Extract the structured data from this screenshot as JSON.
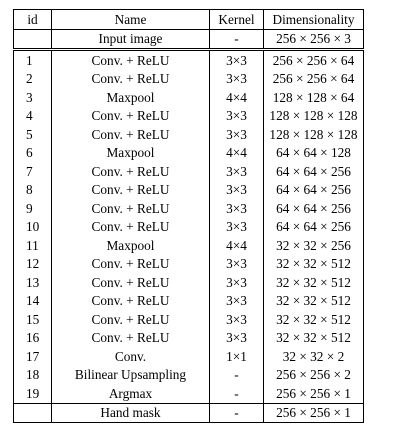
{
  "table": {
    "headers": {
      "id": "id",
      "name": "Name",
      "kernel": "Kernel",
      "dim": "Dimensionality"
    },
    "input_row": {
      "id": "",
      "name": "Input image",
      "kernel": "-",
      "dim": "256 × 256 × 3"
    },
    "rows": [
      {
        "id": "1",
        "name": "Conv. + ReLU",
        "kernel": "3×3",
        "dim": "256 × 256 × 64"
      },
      {
        "id": "2",
        "name": "Conv. + ReLU",
        "kernel": "3×3",
        "dim": "256 × 256 × 64"
      },
      {
        "id": "3",
        "name": "Maxpool",
        "kernel": "4×4",
        "dim": "128 × 128 × 64"
      },
      {
        "id": "4",
        "name": "Conv. + ReLU",
        "kernel": "3×3",
        "dim": "128 × 128 × 128"
      },
      {
        "id": "5",
        "name": "Conv. + ReLU",
        "kernel": "3×3",
        "dim": "128 × 128 × 128"
      },
      {
        "id": "6",
        "name": "Maxpool",
        "kernel": "4×4",
        "dim": "64 × 64 × 128"
      },
      {
        "id": "7",
        "name": "Conv. + ReLU",
        "kernel": "3×3",
        "dim": "64 × 64 × 256"
      },
      {
        "id": "8",
        "name": "Conv. + ReLU",
        "kernel": "3×3",
        "dim": "64 × 64 × 256"
      },
      {
        "id": "9",
        "name": "Conv. + ReLU",
        "kernel": "3×3",
        "dim": "64 × 64 × 256"
      },
      {
        "id": "10",
        "name": "Conv. + ReLU",
        "kernel": "3×3",
        "dim": "64 × 64 × 256"
      },
      {
        "id": "11",
        "name": "Maxpool",
        "kernel": "4×4",
        "dim": "32 × 32 × 256"
      },
      {
        "id": "12",
        "name": "Conv. + ReLU",
        "kernel": "3×3",
        "dim": "32 × 32 × 512"
      },
      {
        "id": "13",
        "name": "Conv. + ReLU",
        "kernel": "3×3",
        "dim": "32 × 32 × 512"
      },
      {
        "id": "14",
        "name": "Conv. + ReLU",
        "kernel": "3×3",
        "dim": "32 × 32 × 512"
      },
      {
        "id": "15",
        "name": "Conv. + ReLU",
        "kernel": "3×3",
        "dim": "32 × 32 × 512"
      },
      {
        "id": "16",
        "name": "Conv. + ReLU",
        "kernel": "3×3",
        "dim": "32 × 32 × 512"
      },
      {
        "id": "17",
        "name": "Conv.",
        "kernel": "1×1",
        "dim": "32 × 32 × 2"
      },
      {
        "id": "18",
        "name": "Bilinear Upsampling",
        "kernel": "-",
        "dim": "256 × 256 × 2"
      },
      {
        "id": "19",
        "name": "Argmax",
        "kernel": "-",
        "dim": "256 × 256 × 1"
      }
    ],
    "output_row": {
      "id": "",
      "name": "Hand mask",
      "kernel": "-",
      "dim": "256 × 256 × 1"
    }
  }
}
